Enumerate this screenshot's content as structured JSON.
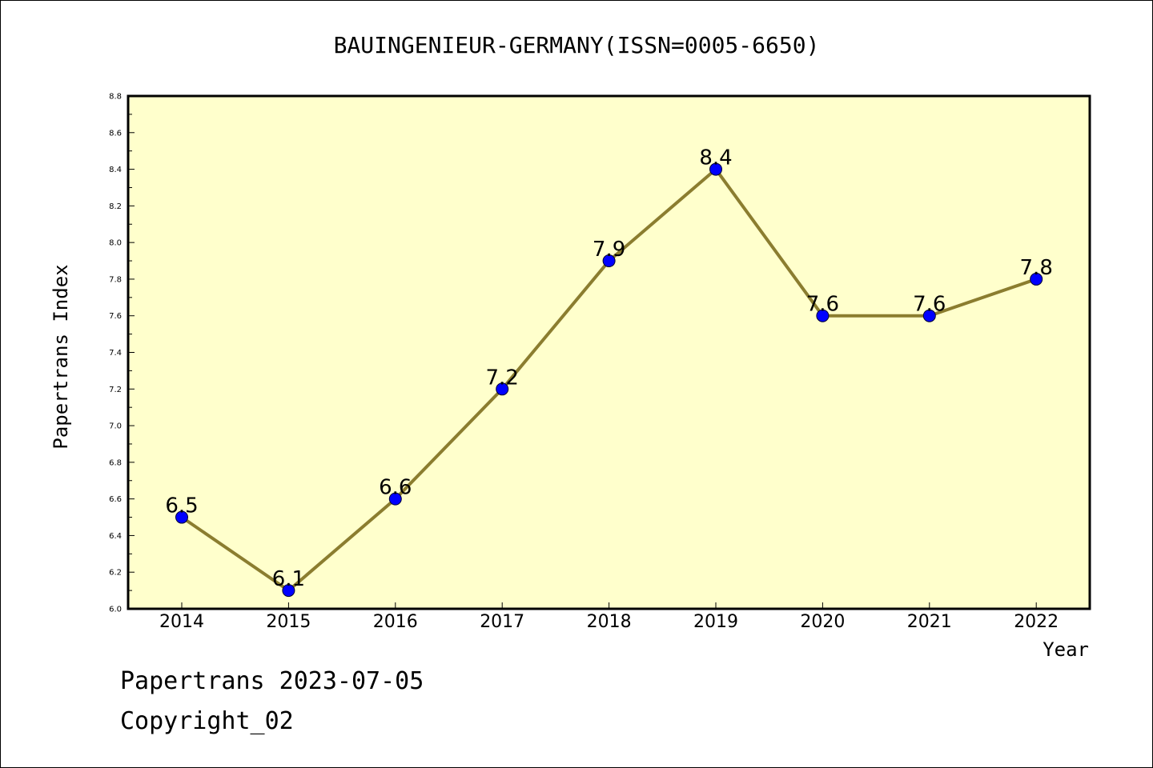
{
  "chart_data": {
    "type": "line",
    "title": "BAUINGENIEUR-GERMANY(ISSN=0005-6650)",
    "xlabel": "Year",
    "ylabel": "Papertrans Index",
    "categories": [
      "2014",
      "2015",
      "2016",
      "2017",
      "2018",
      "2019",
      "2020",
      "2021",
      "2022"
    ],
    "values": [
      6.5,
      6.1,
      6.6,
      7.2,
      7.9,
      8.4,
      7.6,
      7.6,
      7.8
    ],
    "data_labels": [
      "6.5",
      "6.1",
      "6.6",
      "7.2",
      "7.9",
      "8.4",
      "7.6",
      "7.6",
      "7.8"
    ],
    "ylim": [
      6.0,
      8.8
    ],
    "yticks": [
      "6.0",
      "6.2",
      "6.4",
      "6.6",
      "6.8",
      "7.0",
      "7.2",
      "7.4",
      "7.6",
      "7.8",
      "8.0",
      "8.2",
      "8.4",
      "8.6",
      "8.8"
    ],
    "grid": false,
    "legend": "none",
    "colors": {
      "plot_background": "#ffffcc",
      "line": "#8b7d2f",
      "marker": "#0000ff"
    }
  },
  "footer": {
    "date_line": "Papertrans 2023-07-05",
    "copyright_line": "Copyright_02"
  }
}
